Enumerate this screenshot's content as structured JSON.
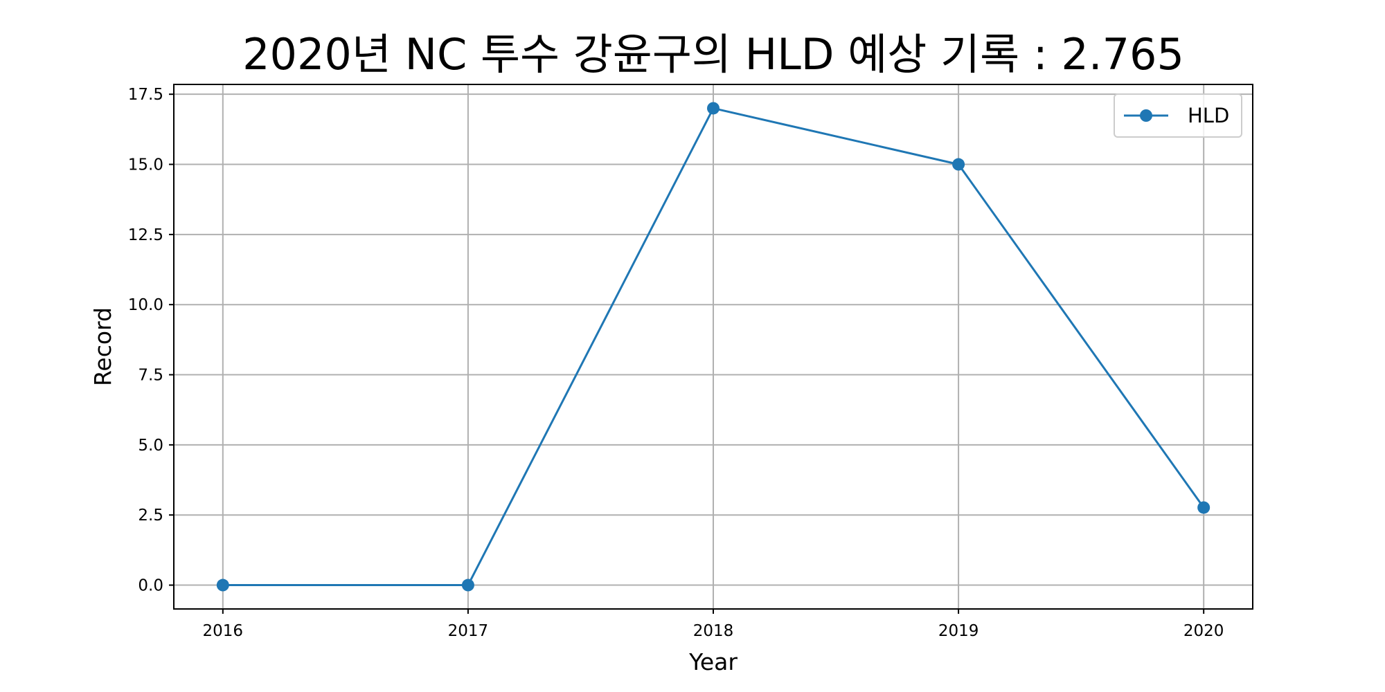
{
  "chart_data": {
    "type": "line",
    "title": "2020년 NC 투수 강윤구의 HLD 예상 기록 : 2.765",
    "xlabel": "Year",
    "ylabel": "Record",
    "x": [
      2016,
      2017,
      2018,
      2019,
      2020
    ],
    "x_tick_labels": [
      "2016",
      "2017",
      "2018",
      "2019",
      "2020"
    ],
    "xlim": [
      2015.8,
      2020.2
    ],
    "ylim": [
      -0.85,
      17.85
    ],
    "y_ticks": [
      0.0,
      2.5,
      5.0,
      7.5,
      10.0,
      12.5,
      15.0,
      17.5
    ],
    "y_tick_labels": [
      "0.0",
      "2.5",
      "5.0",
      "7.5",
      "10.0",
      "12.5",
      "15.0",
      "17.5"
    ],
    "series": [
      {
        "name": "HLD",
        "values": [
          0,
          0,
          17,
          15,
          2.765
        ],
        "color": "#1f77b4",
        "marker": "circle"
      }
    ],
    "grid": true,
    "legend": "top-right"
  }
}
